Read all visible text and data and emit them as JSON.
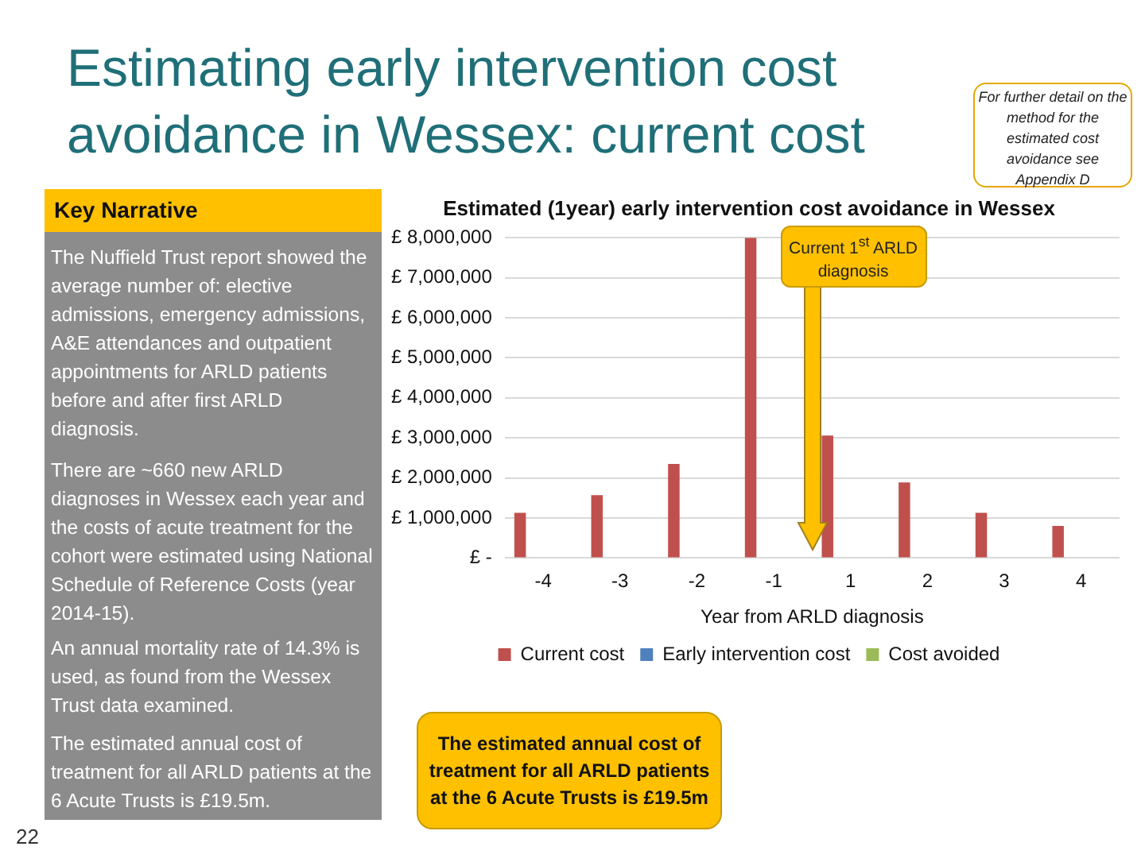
{
  "chart_data": {
    "type": "bar",
    "title": "Estimating early intervention cost avoidance in Wessex: current cost",
    "subtitle": "Estimated (1year) early intervention cost avoidance in Wessex",
    "xlabel": "Year from ARLD diagnosis",
    "categories": [
      "-4",
      "-3",
      "-2",
      "-1",
      "1",
      "2",
      "3",
      "4"
    ],
    "series": [
      {
        "name": "Current cost",
        "color": "#c0504d",
        "values": [
          1130000,
          1570000,
          2350000,
          8000000,
          3060000,
          1890000,
          1130000,
          800000
        ]
      },
      {
        "name": "Early intervention cost",
        "color": "#4f81bd",
        "values": [
          null,
          null,
          null,
          null,
          null,
          null,
          null,
          null
        ]
      },
      {
        "name": "Cost avoided",
        "color": "#9bbb59",
        "values": [
          null,
          null,
          null,
          null,
          null,
          null,
          null,
          null
        ]
      }
    ],
    "ylim": [
      0,
      8000000
    ],
    "yticks": [
      {
        "value": 0,
        "label": "£ -"
      },
      {
        "value": 1000000,
        "label": "£ 1,000,000"
      },
      {
        "value": 2000000,
        "label": "£ 2,000,000"
      },
      {
        "value": 3000000,
        "label": "£ 3,000,000"
      },
      {
        "value": 4000000,
        "label": "£ 4,000,000"
      },
      {
        "value": 5000000,
        "label": "£ 5,000,000"
      },
      {
        "value": 6000000,
        "label": "£ 6,000,000"
      },
      {
        "value": 7000000,
        "label": "£ 7,000,000"
      },
      {
        "value": 8000000,
        "label": "£ 8,000,000"
      }
    ],
    "grid": "y",
    "legend": "bottom",
    "annotations": [
      "For further detail on the method for the estimated cost avoidance see Appendix D",
      "Key Narrative",
      "The Nuffield Trust report showed the average number of: elective admissions, emergency admissions, A&E attendances and outpatient appointments for ARLD patients before and after first ARLD diagnosis.",
      "There are ~660 new ARLD diagnoses in Wessex each year and the costs of acute treatment for the cohort were estimated using National Schedule of Reference Costs (year 2014-15).",
      "An annual mortality rate of 14.3% is used, as found from the Wessex Trust data examined.",
      "The estimated annual cost of treatment for all ARLD patients at the 6 Acute Trusts is £19.5m.",
      "Current 1$^{st}$ ARLD diagnosis",
      "The estimated annual cost of treatment for all ARLD patients at the 6 Acute Trusts is £19.5m",
      "22"
    ]
  }
}
